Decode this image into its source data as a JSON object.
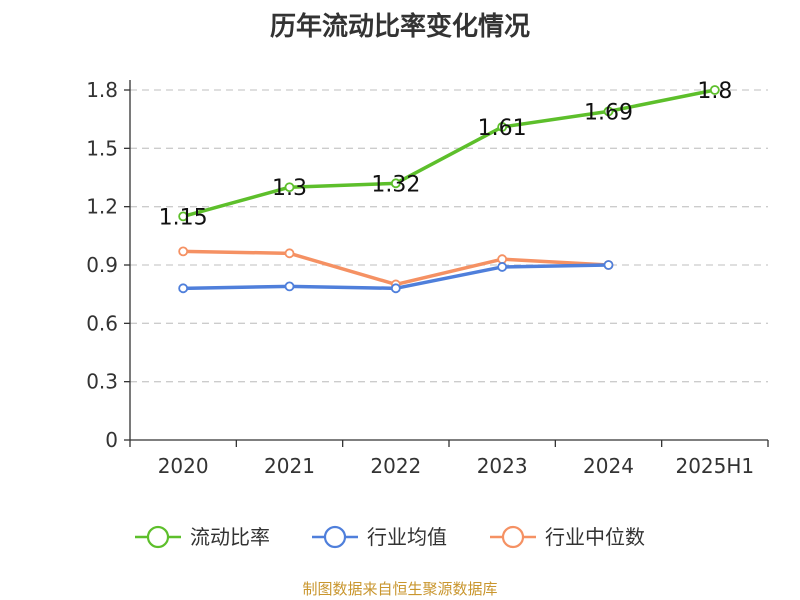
{
  "title": "历年流动比率变化情况",
  "source": "制图数据来自恒生聚源数据库",
  "chart_data": {
    "type": "line",
    "title": "历年流动比率变化情况",
    "categories": [
      "2020",
      "2021",
      "2022",
      "2023",
      "2024",
      "2025H1"
    ],
    "ylim": [
      0,
      1.8
    ],
    "yticks": [
      "0",
      "0.3",
      "0.6",
      "0.9",
      "1.2",
      "1.5",
      "1.8"
    ],
    "grid": true,
    "legend_position": "bottom",
    "series": [
      {
        "name": "流动比率",
        "color": "#5dbf2b",
        "values": [
          1.15,
          1.3,
          1.32,
          1.61,
          1.69,
          1.8
        ],
        "labels": [
          "1.15",
          "1.3",
          "1.32",
          "1.61",
          "1.69",
          "1.8"
        ]
      },
      {
        "name": "行业均值",
        "color": "#4f7fdb",
        "values": [
          0.78,
          0.79,
          0.78,
          0.89,
          0.9,
          null
        ]
      },
      {
        "name": "行业中位数",
        "color": "#f59163",
        "values": [
          0.97,
          0.96,
          0.8,
          0.93,
          0.9,
          null
        ]
      }
    ]
  }
}
